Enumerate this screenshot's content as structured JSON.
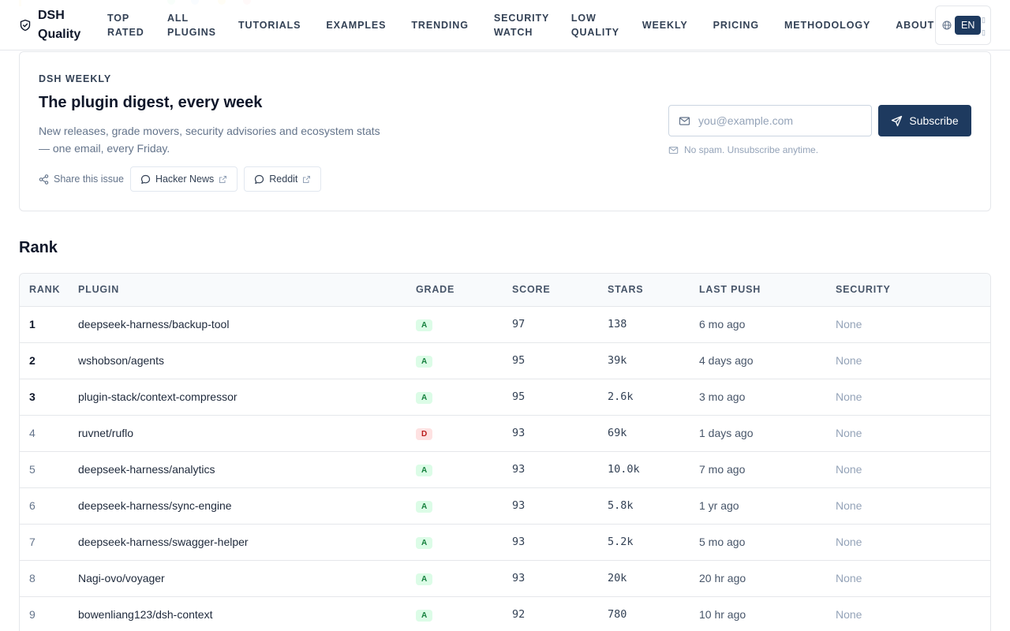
{
  "brand": {
    "name": "DSH Quality",
    "icon": "shield-check-icon"
  },
  "nav": [
    "TOP RATED",
    "ALL PLUGINS",
    "TUTORIALS",
    "EXAMPLES",
    "TRENDING",
    "SECURITY WATCH",
    "LOW QUALITY",
    "WEEKLY",
    "PRICING",
    "METHODOLOGY",
    "ABOUT"
  ],
  "language": {
    "current": "EN",
    "icon": "globe-icon"
  },
  "weekly": {
    "eyebrow": "DSH WEEKLY",
    "title": "The plugin digest, every week",
    "description": "New releases, grade movers, security advisories and ecosystem stats — one email, every Friday.",
    "share_label": "Share this issue",
    "share_buttons": [
      {
        "label": "Hacker News",
        "icon": "comment-icon",
        "external_icon": "external-link-icon"
      },
      {
        "label": "Reddit",
        "icon": "comment-icon",
        "external_icon": "external-link-icon"
      }
    ],
    "email_placeholder": "you@example.com",
    "subscribe_label": "Subscribe",
    "note": "No spam. Unsubscribe anytime."
  },
  "rank": {
    "title": "Rank",
    "columns": [
      "RANK",
      "PLUGIN",
      "GRADE",
      "SCORE",
      "STARS",
      "LAST PUSH",
      "SECURITY"
    ],
    "rows": [
      {
        "rank": "1",
        "plugin": "deepseek-harness/backup-tool",
        "grade": "A",
        "score": "97",
        "stars": "138",
        "last_push": "6 mo ago",
        "security": "None"
      },
      {
        "rank": "2",
        "plugin": "wshobson/agents",
        "grade": "A",
        "score": "95",
        "stars": "39k",
        "last_push": "4 days ago",
        "security": "None"
      },
      {
        "rank": "3",
        "plugin": "plugin-stack/context-compressor",
        "grade": "A",
        "score": "95",
        "stars": "2.6k",
        "last_push": "3 mo ago",
        "security": "None"
      },
      {
        "rank": "4",
        "plugin": "ruvnet/ruflo",
        "grade": "D",
        "score": "93",
        "stars": "69k",
        "last_push": "1 days ago",
        "security": "None"
      },
      {
        "rank": "5",
        "plugin": "deepseek-harness/analytics",
        "grade": "A",
        "score": "93",
        "stars": "10.0k",
        "last_push": "7 mo ago",
        "security": "None"
      },
      {
        "rank": "6",
        "plugin": "deepseek-harness/sync-engine",
        "grade": "A",
        "score": "93",
        "stars": "5.8k",
        "last_push": "1 yr ago",
        "security": "None"
      },
      {
        "rank": "7",
        "plugin": "deepseek-harness/swagger-helper",
        "grade": "A",
        "score": "93",
        "stars": "5.2k",
        "last_push": "5 mo ago",
        "security": "None"
      },
      {
        "rank": "8",
        "plugin": "Nagi-ovo/voyager",
        "grade": "A",
        "score": "93",
        "stars": "20k",
        "last_push": "20 hr ago",
        "security": "None"
      },
      {
        "rank": "9",
        "plugin": "bowenliang123/dsh-context",
        "grade": "A",
        "score": "92",
        "stars": "780",
        "last_push": "10 hr ago",
        "security": "None"
      }
    ]
  },
  "colors": {
    "accent": "#1e3a5f",
    "grade_a_bg": "#dcfce7",
    "grade_a_text": "#15803d",
    "grade_d_bg": "#fee2e2",
    "grade_d_text": "#b91c1c"
  }
}
